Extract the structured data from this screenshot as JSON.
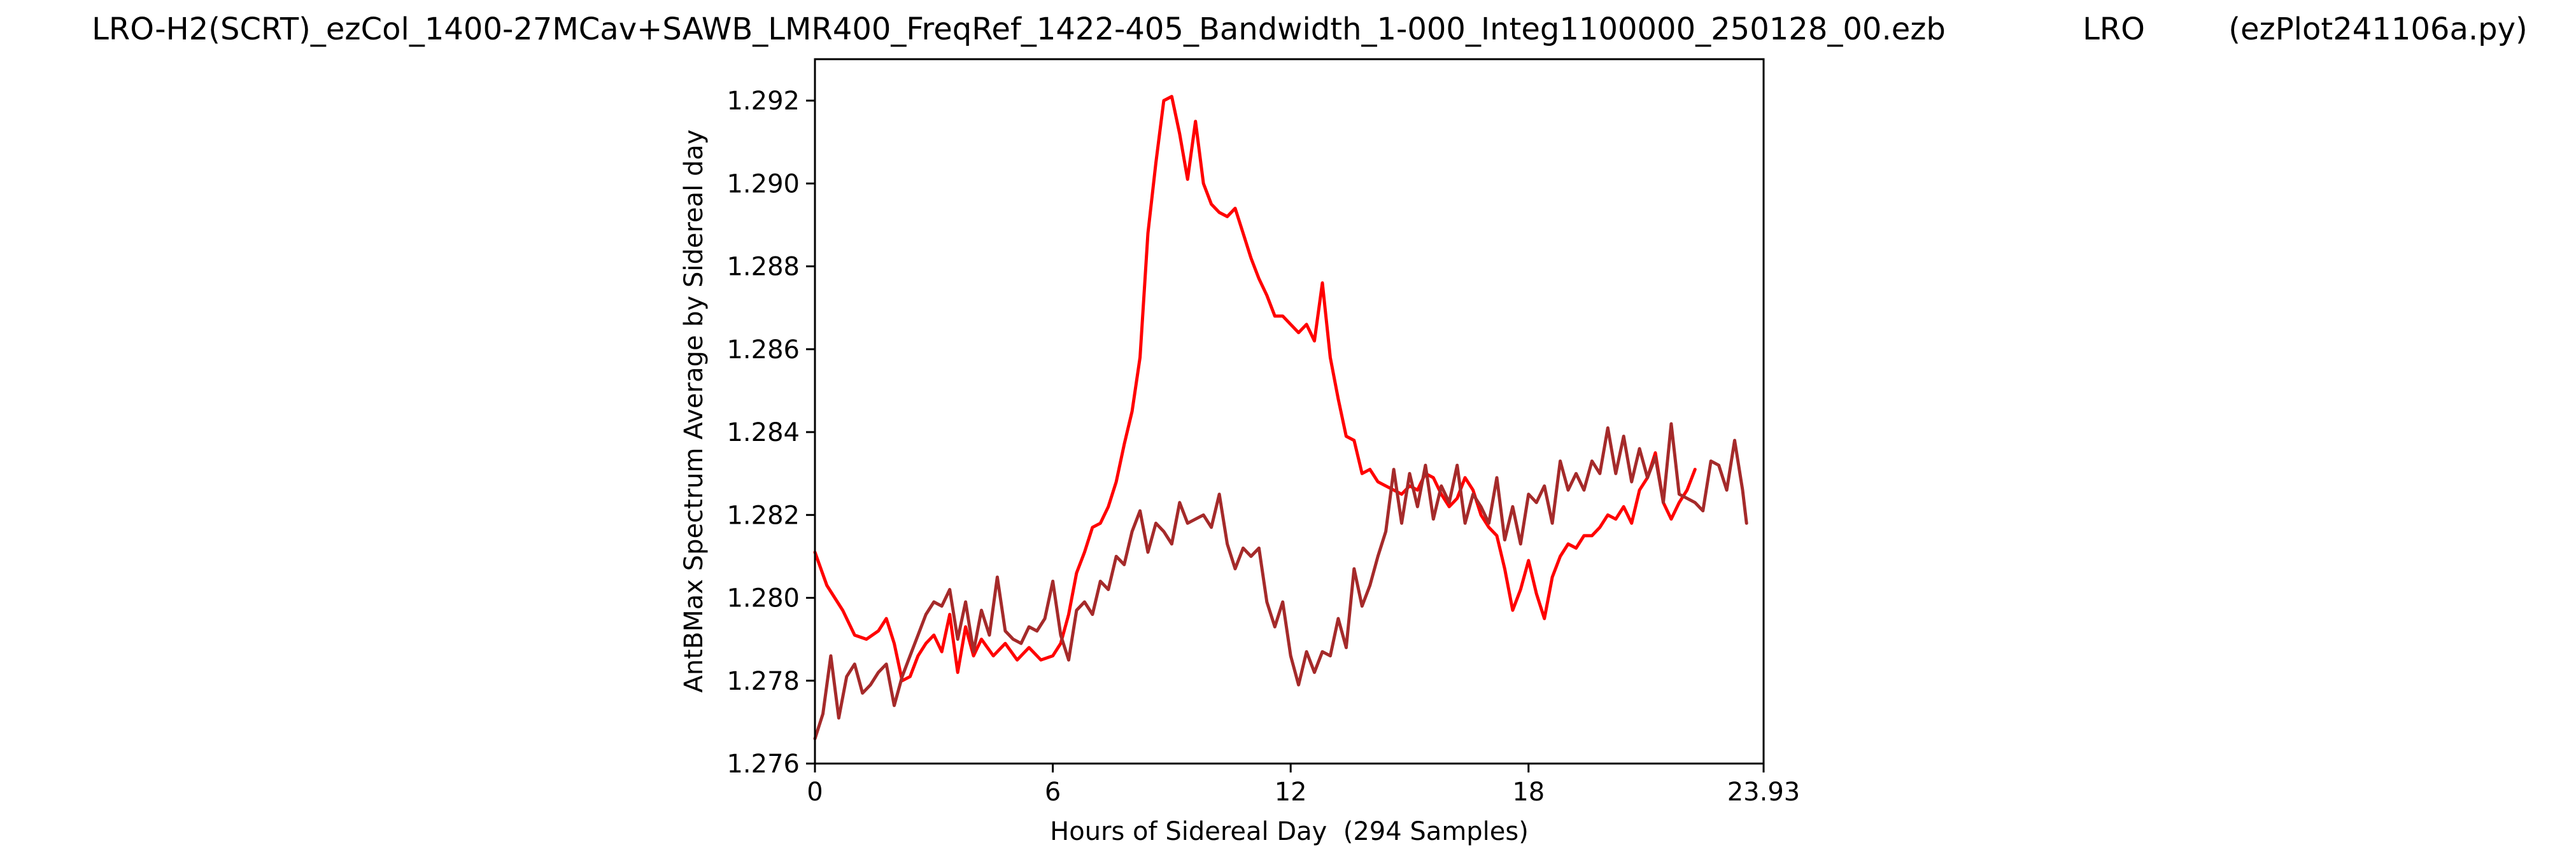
{
  "header": {
    "filename": "LRO-H2(SCRT)_ezCol_1400-27MCav+SAWB_LMR400_FreqRef_1422-405_Bandwidth_1-000_Integ1100000_250128_00.ezb",
    "station": "LRO",
    "program": "(ezPlot241106a.py)"
  },
  "chart_data": {
    "type": "line",
    "title": "LRO-H2(SCRT)_ezCol_1400-27MCav+SAWB_LMR400_FreqRef_1422-405_Bandwidth_1-000_Integ1100000_250128_00.ezb",
    "xlabel": "Hours of Sidereal Day  (294 Samples)",
    "ylabel": "AntBMax Spectrum Average by Sidereal day",
    "xlim": [
      0,
      23.93
    ],
    "ylim": [
      1.276,
      1.293
    ],
    "xticks": [
      0,
      6,
      12,
      18,
      23.93
    ],
    "xtick_labels": [
      "0",
      "6",
      "12",
      "18",
      "23.93"
    ],
    "yticks": [
      1.276,
      1.278,
      1.28,
      1.282,
      1.284,
      1.286,
      1.288,
      1.29,
      1.292
    ],
    "ytick_labels": [
      "1.276",
      "1.278",
      "1.280",
      "1.282",
      "1.284",
      "1.286",
      "1.288",
      "1.290",
      "1.292"
    ],
    "grid": false,
    "series": [
      {
        "color": "#ff0000",
        "x": [
          0,
          0.3,
          0.7,
          1.0,
          1.3,
          1.6,
          1.8,
          2.0,
          2.2,
          2.4,
          2.6,
          2.8,
          3.0,
          3.2,
          3.4,
          3.6,
          3.8,
          4.0,
          4.2,
          4.5,
          4.8,
          5.1,
          5.4,
          5.7,
          6.0,
          6.2,
          6.4,
          6.6,
          6.8,
          7.0,
          7.2,
          7.4,
          7.6,
          7.8,
          8.0,
          8.2,
          8.4,
          8.6,
          8.8,
          9.0,
          9.2,
          9.4,
          9.6,
          9.8,
          10.0,
          10.2,
          10.4,
          10.6,
          10.8,
          11.0,
          11.2,
          11.4,
          11.6,
          11.8,
          12.0,
          12.2,
          12.4,
          12.6,
          12.8,
          13.0,
          13.2,
          13.4,
          13.6,
          13.8,
          14.0,
          14.2,
          14.4,
          14.6,
          14.8,
          15.0,
          15.2,
          15.4,
          15.6,
          15.8,
          16.0,
          16.2,
          16.4,
          16.6,
          16.8,
          17.0,
          17.2,
          17.4,
          17.6,
          17.8,
          18.0,
          18.2,
          18.4,
          18.6,
          18.8,
          19.0,
          19.2,
          19.4,
          19.6,
          19.8,
          20.0,
          20.2,
          20.4,
          20.6,
          20.8,
          21.0,
          21.2,
          21.4,
          21.6,
          21.8,
          22.0,
          22.2
        ],
        "values": [
          1.2811,
          1.2803,
          1.2797,
          1.2791,
          1.279,
          1.2792,
          1.2795,
          1.2789,
          1.278,
          1.2781,
          1.2786,
          1.2789,
          1.2791,
          1.2787,
          1.2796,
          1.2782,
          1.2793,
          1.2786,
          1.279,
          1.2786,
          1.2789,
          1.2785,
          1.2788,
          1.2785,
          1.2786,
          1.2789,
          1.2796,
          1.2806,
          1.2811,
          1.2817,
          1.2818,
          1.2822,
          1.2828,
          1.2837,
          1.2845,
          1.2858,
          1.2888,
          1.2905,
          1.292,
          1.2921,
          1.2912,
          1.2901,
          1.2915,
          1.29,
          1.2895,
          1.2893,
          1.2892,
          1.2894,
          1.2888,
          1.2882,
          1.2877,
          1.2873,
          1.2868,
          1.2868,
          1.2866,
          1.2864,
          1.2866,
          1.2862,
          1.2876,
          1.2858,
          1.2848,
          1.2839,
          1.2838,
          1.283,
          1.2831,
          1.2828,
          1.2827,
          1.2826,
          1.2825,
          1.2827,
          1.2826,
          1.283,
          1.2829,
          1.2825,
          1.2822,
          1.2824,
          1.2829,
          1.2826,
          1.282,
          1.2817,
          1.2815,
          1.2807,
          1.2797,
          1.2802,
          1.2809,
          1.2801,
          1.2795,
          1.2805,
          1.281,
          1.2813,
          1.2812,
          1.2815,
          1.2815,
          1.2817,
          1.282,
          1.2819,
          1.2822,
          1.2818,
          1.2826,
          1.2829,
          1.2835,
          1.2823,
          1.2819,
          1.2823,
          1.2826,
          1.2831
        ]
      },
      {
        "color": "#a52a2a",
        "x": [
          0,
          0.2,
          0.4,
          0.6,
          0.8,
          1.0,
          1.2,
          1.4,
          1.6,
          1.8,
          2.0,
          2.2,
          2.4,
          2.6,
          2.8,
          3.0,
          3.2,
          3.4,
          3.6,
          3.8,
          4.0,
          4.2,
          4.4,
          4.6,
          4.8,
          5.0,
          5.2,
          5.4,
          5.6,
          5.8,
          6.0,
          6.2,
          6.4,
          6.6,
          6.8,
          7.0,
          7.2,
          7.4,
          7.6,
          7.8,
          8.0,
          8.2,
          8.4,
          8.6,
          8.8,
          9.0,
          9.2,
          9.4,
          9.6,
          9.8,
          10.0,
          10.2,
          10.4,
          10.6,
          10.8,
          11.0,
          11.2,
          11.4,
          11.6,
          11.8,
          12.0,
          12.2,
          12.4,
          12.6,
          12.8,
          13.0,
          13.2,
          13.4,
          13.6,
          13.8,
          14.0,
          14.2,
          14.4,
          14.6,
          14.8,
          15.0,
          15.2,
          15.4,
          15.6,
          15.8,
          16.0,
          16.2,
          16.4,
          16.6,
          16.8,
          17.0,
          17.2,
          17.4,
          17.6,
          17.8,
          18.0,
          18.2,
          18.4,
          18.6,
          18.8,
          19.0,
          19.2,
          19.4,
          19.6,
          19.8,
          20.0,
          20.2,
          20.4,
          20.6,
          20.8,
          21.0,
          21.2,
          21.4,
          21.6,
          21.8,
          22.0,
          22.2,
          22.4,
          22.6,
          22.8,
          23.0,
          23.2,
          23.4,
          23.5
        ],
        "values": [
          1.2766,
          1.2772,
          1.2786,
          1.2771,
          1.2781,
          1.2784,
          1.2777,
          1.2779,
          1.2782,
          1.2784,
          1.2774,
          1.2781,
          1.2786,
          1.2791,
          1.2796,
          1.2799,
          1.2798,
          1.2802,
          1.279,
          1.2799,
          1.2787,
          1.2797,
          1.2791,
          1.2805,
          1.2792,
          1.279,
          1.2789,
          1.2793,
          1.2792,
          1.2795,
          1.2804,
          1.2791,
          1.2785,
          1.2797,
          1.2799,
          1.2796,
          1.2804,
          1.2802,
          1.281,
          1.2808,
          1.2816,
          1.2821,
          1.2811,
          1.2818,
          1.2816,
          1.2813,
          1.2823,
          1.2818,
          1.2819,
          1.282,
          1.2817,
          1.2825,
          1.2813,
          1.2807,
          1.2812,
          1.281,
          1.2812,
          1.2799,
          1.2793,
          1.2799,
          1.2786,
          1.2779,
          1.2787,
          1.2782,
          1.2787,
          1.2786,
          1.2795,
          1.2788,
          1.2807,
          1.2798,
          1.2803,
          1.281,
          1.2816,
          1.2831,
          1.2818,
          1.283,
          1.2822,
          1.2832,
          1.2819,
          1.2827,
          1.2823,
          1.2832,
          1.2818,
          1.2825,
          1.2822,
          1.2818,
          1.2829,
          1.2814,
          1.2822,
          1.2813,
          1.2825,
          1.2823,
          1.2827,
          1.2818,
          1.2833,
          1.2826,
          1.283,
          1.2826,
          1.2833,
          1.283,
          1.2841,
          1.283,
          1.2839,
          1.2828,
          1.2836,
          1.2829,
          1.2834,
          1.2823,
          1.2842,
          1.2825,
          1.2824,
          1.2823,
          1.2821,
          1.2833,
          1.2832,
          1.2826,
          1.2838,
          1.2826,
          1.2818
        ]
      }
    ]
  }
}
